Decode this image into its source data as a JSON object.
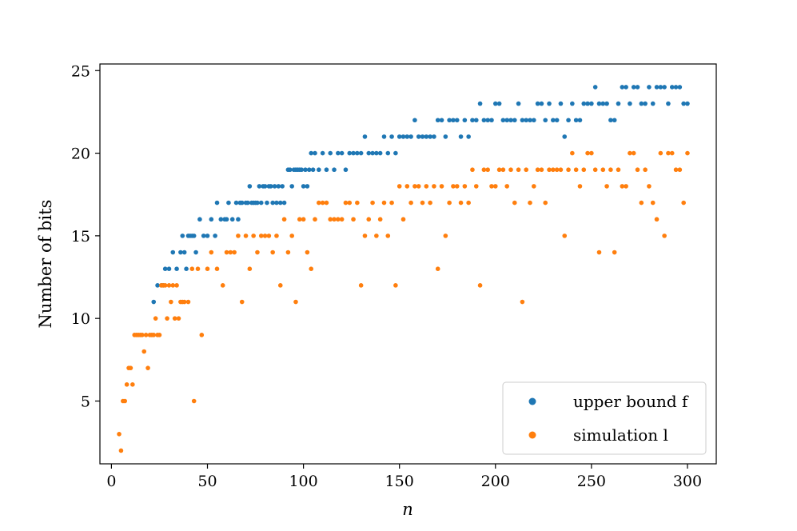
{
  "chart_data": {
    "type": "scatter",
    "title": "",
    "xlabel": "n",
    "ylabel": "Number of bits",
    "xlim": [
      -6,
      315
    ],
    "ylim": [
      1.2,
      25.4
    ],
    "xticks": [
      0,
      50,
      100,
      150,
      200,
      250,
      300
    ],
    "yticks": [
      5,
      10,
      15,
      20,
      25
    ],
    "grid": false,
    "legend_position": "lower-right",
    "series": [
      {
        "name": "upper bound f",
        "color": "#1f77b4",
        "x": [
          22,
          24,
          26,
          27,
          28,
          30,
          32,
          34,
          36,
          37,
          38,
          39,
          40,
          41,
          42,
          43,
          44,
          46,
          48,
          50,
          52,
          54,
          55,
          57,
          59,
          60,
          61,
          63,
          65,
          66,
          67,
          68,
          70,
          71,
          72,
          73,
          74,
          75,
          76,
          77,
          78,
          79,
          80,
          81,
          82,
          83,
          84,
          85,
          86,
          87,
          88,
          89,
          90,
          92,
          93,
          94,
          95,
          96,
          97,
          98,
          99,
          100,
          101,
          102,
          103,
          104,
          105,
          106,
          108,
          110,
          112,
          114,
          116,
          118,
          120,
          122,
          124,
          126,
          128,
          130,
          132,
          134,
          136,
          138,
          140,
          142,
          144,
          146,
          148,
          150,
          152,
          154,
          156,
          158,
          160,
          162,
          164,
          166,
          168,
          170,
          172,
          174,
          176,
          178,
          180,
          182,
          184,
          186,
          188,
          190,
          192,
          194,
          196,
          198,
          200,
          202,
          204,
          206,
          208,
          210,
          212,
          214,
          216,
          218,
          220,
          222,
          224,
          226,
          228,
          230,
          232,
          234,
          236,
          238,
          240,
          242,
          244,
          246,
          248,
          250,
          252,
          254,
          256,
          258,
          260,
          262,
          264,
          266,
          268,
          270,
          272,
          274,
          276,
          278,
          280,
          282,
          284,
          286,
          288,
          290,
          292,
          294,
          296,
          298,
          300
        ],
        "y": [
          11,
          12,
          12,
          12,
          13,
          13,
          14,
          13,
          14,
          15,
          14,
          13,
          15,
          15,
          15,
          15,
          14,
          16,
          15,
          15,
          16,
          15,
          17,
          16,
          16,
          16,
          17,
          16,
          17,
          16,
          17,
          17,
          17,
          17,
          18,
          17,
          17,
          17,
          17,
          18,
          17,
          18,
          18,
          17,
          18,
          18,
          17,
          18,
          17,
          18,
          17,
          18,
          17,
          19,
          19,
          18,
          19,
          19,
          19,
          19,
          19,
          18,
          19,
          18,
          19,
          20,
          19,
          20,
          19,
          20,
          19,
          20,
          19,
          20,
          20,
          19,
          20,
          20,
          20,
          20,
          21,
          20,
          20,
          20,
          20,
          21,
          20,
          21,
          20,
          21,
          21,
          21,
          21,
          22,
          21,
          21,
          21,
          21,
          21,
          22,
          22,
          21,
          22,
          22,
          22,
          21,
          22,
          21,
          22,
          22,
          23,
          22,
          22,
          22,
          23,
          23,
          22,
          22,
          22,
          22,
          23,
          22,
          22,
          22,
          22,
          23,
          23,
          22,
          23,
          22,
          22,
          23,
          21,
          22,
          23,
          22,
          22,
          23,
          23,
          23,
          24,
          23,
          23,
          23,
          22,
          22,
          23,
          24,
          24,
          23,
          24,
          24,
          23,
          23,
          24,
          23,
          24,
          24,
          24,
          23,
          24,
          24,
          24,
          23,
          23
        ]
      },
      {
        "name": "simulation l",
        "color": "#ff7f0e",
        "x": [
          4,
          5,
          6,
          7,
          8,
          9,
          10,
          11,
          12,
          13,
          14,
          15,
          16,
          17,
          18,
          19,
          20,
          21,
          22,
          23,
          24,
          25,
          26,
          27,
          28,
          29,
          30,
          31,
          32,
          33,
          34,
          35,
          36,
          37,
          38,
          40,
          42,
          43,
          45,
          47,
          50,
          52,
          55,
          58,
          60,
          62,
          64,
          66,
          68,
          70,
          72,
          74,
          76,
          78,
          80,
          82,
          84,
          86,
          88,
          90,
          92,
          94,
          96,
          98,
          100,
          102,
          104,
          106,
          108,
          110,
          112,
          114,
          116,
          118,
          120,
          122,
          124,
          126,
          128,
          130,
          132,
          134,
          136,
          138,
          140,
          142,
          144,
          146,
          148,
          150,
          152,
          154,
          156,
          158,
          160,
          162,
          164,
          166,
          168,
          170,
          172,
          174,
          176,
          178,
          180,
          182,
          184,
          186,
          188,
          190,
          192,
          194,
          196,
          198,
          200,
          202,
          204,
          206,
          208,
          210,
          212,
          214,
          216,
          218,
          220,
          222,
          224,
          226,
          228,
          230,
          232,
          234,
          236,
          238,
          240,
          242,
          244,
          246,
          248,
          250,
          252,
          254,
          256,
          258,
          260,
          262,
          264,
          266,
          268,
          270,
          272,
          274,
          276,
          278,
          280,
          282,
          284,
          286,
          288,
          290,
          292,
          294,
          296,
          298,
          300
        ],
        "y": [
          3,
          2,
          5,
          5,
          6,
          7,
          7,
          6,
          9,
          9,
          9,
          9,
          9,
          8,
          9,
          7,
          9,
          9,
          9,
          10,
          9,
          9,
          12,
          12,
          12,
          10,
          12,
          11,
          12,
          10,
          12,
          10,
          11,
          11,
          11,
          11,
          13,
          5,
          13,
          9,
          13,
          14,
          13,
          12,
          14,
          14,
          14,
          15,
          11,
          15,
          13,
          15,
          14,
          15,
          15,
          15,
          14,
          15,
          12,
          16,
          14,
          15,
          11,
          16,
          16,
          14,
          13,
          16,
          17,
          17,
          17,
          16,
          16,
          16,
          16,
          17,
          17,
          16,
          17,
          12,
          15,
          16,
          17,
          15,
          16,
          17,
          15,
          17,
          12,
          18,
          16,
          18,
          17,
          18,
          18,
          17,
          18,
          17,
          18,
          13,
          18,
          15,
          17,
          18,
          18,
          17,
          18,
          17,
          19,
          18,
          12,
          19,
          19,
          18,
          18,
          19,
          19,
          18,
          19,
          17,
          19,
          11,
          19,
          17,
          18,
          19,
          19,
          17,
          19,
          19,
          19,
          19,
          15,
          19,
          20,
          19,
          18,
          19,
          20,
          20,
          19,
          14,
          19,
          18,
          19,
          14,
          19,
          18,
          18,
          20,
          20,
          19,
          17,
          19,
          18,
          17,
          16,
          20,
          15,
          20,
          20,
          19,
          19,
          17,
          20
        ]
      }
    ]
  }
}
